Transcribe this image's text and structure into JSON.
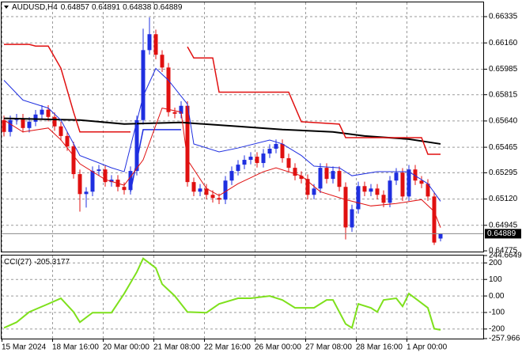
{
  "chart_data": [
    {
      "type": "candlestick",
      "title": "AUDUSD,H4",
      "categories": [
        "15 Mar 2024",
        null,
        null,
        null,
        null,
        null,
        null,
        null,
        "18 Mar 16:00",
        null,
        null,
        null,
        null,
        null,
        null,
        null,
        "20 Mar 00:00",
        null,
        null,
        null,
        null,
        null,
        null,
        null,
        "21 Mar 08:00",
        null,
        null,
        null,
        null,
        null,
        null,
        null,
        "22 Mar 16:00",
        null,
        null,
        null,
        null,
        null,
        null,
        null,
        "26 Mar 00:00",
        null,
        null,
        null,
        null,
        null,
        null,
        null,
        "27 Mar 08:00",
        null,
        null,
        null,
        null,
        null,
        null,
        null,
        "28 Mar 16:00",
        null,
        null,
        null,
        null,
        null,
        null,
        null,
        "1 Apr 00:00",
        null,
        null,
        null,
        null,
        null
      ],
      "open": [
        0.65646,
        0.65567,
        0.65646,
        0.65657,
        0.65593,
        0.65635,
        0.65683,
        0.65715,
        0.65667,
        0.65604,
        0.6554,
        0.65471,
        0.65286,
        0.65153,
        0.65169,
        0.65307,
        0.65317,
        0.65233,
        0.65249,
        0.65201,
        0.6518,
        0.65307,
        0.65646,
        0.66112,
        0.66218,
        0.66081,
        0.65996,
        0.65699,
        0.65688,
        0.65741,
        0.65233,
        0.65169,
        0.6519,
        0.65148,
        0.65127,
        0.65116,
        0.65243,
        0.65307,
        0.65349,
        0.65381,
        0.65402,
        0.6536,
        0.65423,
        0.65455,
        0.65487,
        0.65392,
        0.65328,
        0.65275,
        0.65254,
        0.65148,
        0.6519,
        0.65328,
        0.65254,
        0.65307,
        0.65201,
        0.64931,
        0.65052,
        0.65206,
        0.65169,
        0.6519,
        0.65148,
        0.65095,
        0.65243,
        0.65296,
        0.65137,
        0.65317,
        0.65243,
        0.65222,
        0.65137,
        0.64857
      ],
      "high": [
        0.65676,
        0.65676,
        0.65687,
        0.65687,
        0.65665,
        0.65713,
        0.65745,
        0.65745,
        0.65697,
        0.65634,
        0.6557,
        0.65501,
        0.65316,
        0.65199,
        0.65337,
        0.65347,
        0.65347,
        0.65279,
        0.65279,
        0.65231,
        0.65337,
        0.65676,
        0.66255,
        0.6633,
        0.66248,
        0.66111,
        0.66026,
        0.65729,
        0.65771,
        0.65771,
        0.65263,
        0.6522,
        0.6522,
        0.65178,
        0.65157,
        0.65273,
        0.65337,
        0.65379,
        0.65411,
        0.65432,
        0.65432,
        0.65453,
        0.65485,
        0.65517,
        0.65517,
        0.65422,
        0.65358,
        0.65305,
        0.65284,
        0.6522,
        0.65358,
        0.65358,
        0.65337,
        0.65337,
        0.65231,
        0.65082,
        0.65236,
        0.65236,
        0.6522,
        0.6522,
        0.65178,
        0.65273,
        0.65326,
        0.65326,
        0.65347,
        0.65347,
        0.65273,
        0.65252,
        0.65167,
        0.64891
      ],
      "low": [
        0.65537,
        0.65537,
        0.65616,
        0.65563,
        0.65563,
        0.65605,
        0.65653,
        0.65637,
        0.65574,
        0.6551,
        0.65441,
        0.65256,
        0.65036,
        0.65063,
        0.65139,
        0.65277,
        0.65203,
        0.65203,
        0.65171,
        0.6515,
        0.6515,
        0.65277,
        0.65616,
        0.66082,
        0.66051,
        0.65966,
        0.65669,
        0.65658,
        0.65658,
        0.65203,
        0.65139,
        0.65139,
        0.65118,
        0.65097,
        0.65086,
        0.65086,
        0.65213,
        0.65277,
        0.65319,
        0.65351,
        0.6533,
        0.6533,
        0.65393,
        0.65425,
        0.65362,
        0.65298,
        0.65245,
        0.65224,
        0.65118,
        0.65118,
        0.6516,
        0.65224,
        0.65224,
        0.65171,
        0.64851,
        0.64901,
        0.65022,
        0.65139,
        0.65139,
        0.65118,
        0.65065,
        0.65065,
        0.65213,
        0.65107,
        0.65107,
        0.65213,
        0.65192,
        0.65107,
        0.64814,
        0.64838
      ],
      "close": [
        0.65567,
        0.65646,
        0.65657,
        0.65593,
        0.65635,
        0.65683,
        0.65715,
        0.65667,
        0.65604,
        0.6554,
        0.65471,
        0.65286,
        0.65153,
        0.65169,
        0.65307,
        0.65317,
        0.65233,
        0.65249,
        0.65201,
        0.6518,
        0.65307,
        0.65646,
        0.66112,
        0.66218,
        0.66081,
        0.65996,
        0.65699,
        0.65688,
        0.65741,
        0.65233,
        0.65169,
        0.6519,
        0.65148,
        0.65127,
        0.65116,
        0.65243,
        0.65307,
        0.65349,
        0.65381,
        0.65402,
        0.6536,
        0.65423,
        0.65455,
        0.65487,
        0.65392,
        0.65328,
        0.65275,
        0.65254,
        0.65148,
        0.6519,
        0.65328,
        0.65254,
        0.65307,
        0.65201,
        0.64931,
        0.65052,
        0.65206,
        0.65169,
        0.6519,
        0.65148,
        0.65095,
        0.65243,
        0.65296,
        0.65137,
        0.65317,
        0.65243,
        0.65222,
        0.65137,
        0.6483,
        0.64889
      ],
      "up_color": "#1f2fe0",
      "down_color": "#e01010",
      "overlays": [
        {
          "color": "#000000",
          "x": [
            0,
            12,
            19,
            28,
            37,
            44,
            52,
            57,
            64,
            69
          ],
          "values": [
            0.65657,
            0.65646,
            0.6562,
            0.6563,
            0.65604,
            0.65583,
            0.65567,
            0.6554,
            0.65519,
            0.65487
          ]
        },
        {
          "color": "#e01010",
          "x": [
            0,
            4,
            5,
            7,
            9,
            11,
            12,
            20,
            null,
            29,
            30,
            33,
            34,
            45,
            47,
            53,
            54,
            66,
            67,
            69
          ],
          "values": [
            0.6615,
            0.6615,
            0.66139,
            0.66139,
            0.65991,
            0.65699,
            0.65567,
            0.65567,
            null,
            0.66134,
            0.6606,
            0.6606,
            0.65832,
            0.65832,
            0.65635,
            0.65619,
            0.65529,
            0.65529,
            0.65418,
            0.65418
          ]
        },
        {
          "color": "#1f2fe0",
          "x": [
            20,
            22,
            28
          ],
          "values": [
            0.65169,
            0.65582,
            0.65582
          ]
        },
        {
          "color": "#1f2fe0",
          "x": [
            0,
            3,
            7,
            9,
            12,
            17,
            19,
            22,
            24,
            26,
            29,
            30,
            34,
            37,
            42,
            44,
            47,
            49,
            53,
            55,
            59,
            64,
            67,
            69
          ],
          "values": [
            0.65911,
            0.65779,
            0.65726,
            0.65646,
            0.6541,
            0.65328,
            0.65302,
            0.65805,
            0.6599,
            0.65911,
            0.65752,
            0.65487,
            0.65434,
            0.6546,
            0.65513,
            0.65487,
            0.6541,
            0.65339,
            0.65328,
            0.65275,
            0.65302,
            0.65302,
            0.65222,
            0.65105
          ]
        },
        {
          "color": "#e01010",
          "x": [
            0,
            3,
            7,
            9,
            12,
            16,
            19,
            22,
            25,
            28,
            29,
            32,
            34,
            37,
            41,
            43,
            47,
            50,
            54,
            58,
            62,
            66,
            68,
            69
          ],
          "values": [
            0.65646,
            0.65567,
            0.65593,
            0.65514,
            0.65355,
            0.6525,
            0.65212,
            0.65381,
            0.65726,
            0.65699,
            0.65381,
            0.6519,
            0.65143,
            0.65222,
            0.65302,
            0.65328,
            0.65275,
            0.65169,
            0.65116,
            0.65074,
            0.6509,
            0.65116,
            0.65037,
            0.6493
          ]
        }
      ],
      "ylim": [
        0.6477,
        0.6643
      ],
      "yticks": [
        0.66335,
        {
          "value": 0.6616,
          "label": "0.66160"
        },
        0.65985,
        0.65815,
        {
          "value": 0.6564,
          "label": "0.65640"
        },
        0.65465,
        0.65295,
        {
          "value": 0.6512,
          "label": "0.65120"
        },
        0.64945,
        0.64775
      ],
      "grid": true
    },
    {
      "type": "line",
      "title": "CCI(27)",
      "color": "#7ee01c",
      "x": [
        0,
        2,
        4,
        7,
        9,
        11,
        12,
        14,
        17,
        19,
        21,
        22,
        24,
        25,
        27,
        29,
        32,
        34,
        37,
        39,
        42,
        44,
        46,
        49,
        51,
        52,
        54,
        55,
        56,
        58,
        59,
        60,
        62,
        63,
        64,
        65,
        67,
        68,
        69
      ],
      "values": [
        -193,
        -159,
        -97,
        -48,
        -14,
        -97,
        -159,
        -101,
        -101,
        14,
        145,
        227,
        169,
        72,
        0,
        -97,
        -101,
        -48,
        -14,
        -14,
        0,
        -24,
        -72,
        -72,
        -24,
        -24,
        -169,
        -193,
        -48,
        -72,
        -97,
        -24,
        -14,
        -63,
        14,
        -14,
        -72,
        -198,
        -205.3177
      ],
      "ylim": [
        -257.966,
        244.6649
      ],
      "yticks": [
        244.6649,
        200,
        100,
        {
          "value": 0,
          "label": "0.00"
        },
        -100,
        -200,
        -257.966
      ],
      "grid": true
    }
  ]
}
